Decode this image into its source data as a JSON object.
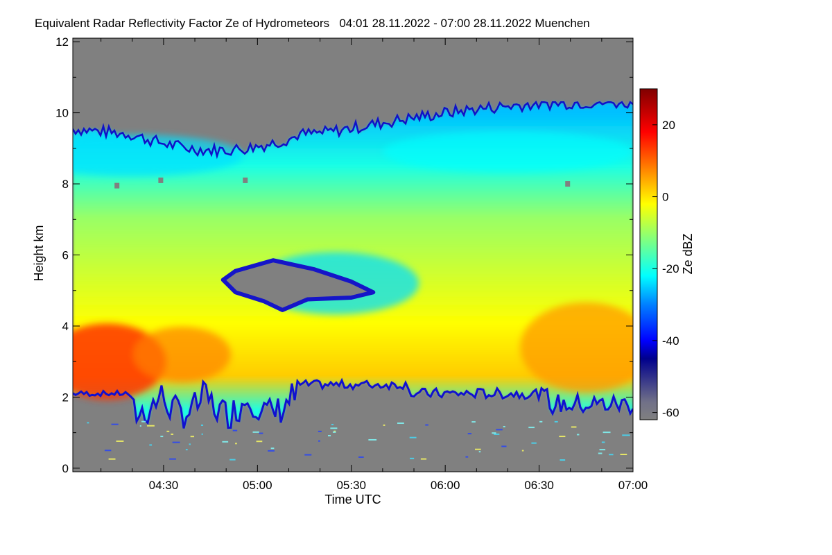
{
  "chart_data": {
    "type": "heatmap",
    "title": "Equivalent Radar Reflectivity Factor Ze of Hydrometeors   04:01 28.11.2022 - 07:00 28.11.2022 Muenchen",
    "xlabel": "Time UTC",
    "ylabel": "Height km",
    "colorbar_label": "Ze dBZ",
    "x_range_minutes_utc": [
      241,
      420
    ],
    "x_ticks": [
      {
        "label": "04:30",
        "minute": 270
      },
      {
        "label": "05:00",
        "minute": 300
      },
      {
        "label": "05:30",
        "minute": 330
      },
      {
        "label": "06:00",
        "minute": 360
      },
      {
        "label": "06:30",
        "minute": 390
      },
      {
        "label": "07:00",
        "minute": 420
      }
    ],
    "y_range_km": [
      -0.1,
      12.1
    ],
    "y_ticks": [
      0,
      2,
      4,
      6,
      8,
      10,
      12
    ],
    "colorbar_range_dbz": [
      -62,
      30
    ],
    "colorbar_ticks": [
      20,
      0,
      -20,
      -40,
      -60
    ],
    "colormap": [
      {
        "dbz": -62,
        "color": "#808080"
      },
      {
        "dbz": -57,
        "color": "#707088"
      },
      {
        "dbz": -45,
        "color": "#00008c"
      },
      {
        "dbz": -40,
        "color": "#0000ff"
      },
      {
        "dbz": -30,
        "color": "#0080ff"
      },
      {
        "dbz": -22,
        "color": "#00ffff"
      },
      {
        "dbz": -12,
        "color": "#80ff80"
      },
      {
        "dbz": -2,
        "color": "#ffff00"
      },
      {
        "dbz": 8,
        "color": "#ff8000"
      },
      {
        "dbz": 18,
        "color": "#ff0000"
      },
      {
        "dbz": 30,
        "color": "#800000"
      }
    ],
    "background_color": "#808080",
    "grid": false,
    "legend": "colorbar-right"
  }
}
